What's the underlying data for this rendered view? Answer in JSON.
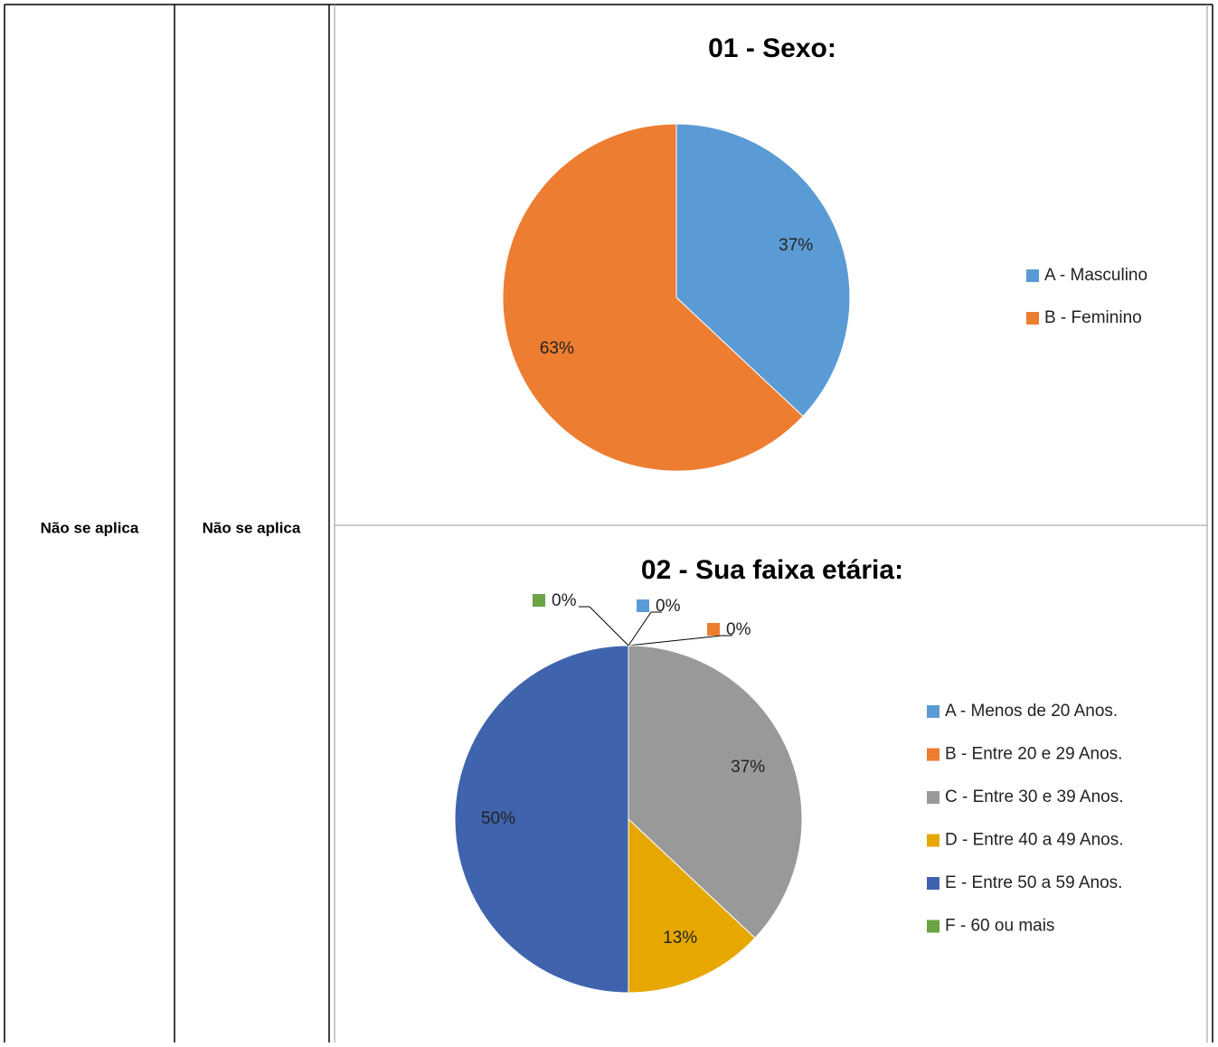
{
  "table": {
    "cells": [
      "Não se aplica",
      "Não se aplica"
    ]
  },
  "chart_data": [
    {
      "type": "pie",
      "title": "01 - Sexo:",
      "labels": [
        "A - Masculino",
        "B - Feminino"
      ],
      "values": [
        37,
        63
      ],
      "value_labels": [
        "37%",
        "63%"
      ],
      "colors": [
        "#5b9bd5",
        "#ed7d31"
      ]
    },
    {
      "type": "pie",
      "title": "02 - Sua faixa etária:",
      "labels": [
        "A - Menos de 20 Anos.",
        "B - Entre 20 e 29 Anos.",
        "C - Entre 30 e 39 Anos.",
        "D - Entre 40 a 49 Anos.",
        "E - Entre 50 a 59 Anos.",
        "F - 60 ou mais"
      ],
      "values": [
        0,
        0,
        37,
        13,
        50,
        0
      ],
      "value_labels": [
        "0%",
        "0%",
        "37%",
        "13%",
        "50%",
        "0%"
      ],
      "colors": [
        "#5b9bd5",
        "#ed7d31",
        "#999999",
        "#e6a800",
        "#3f64ad",
        "#6aa444"
      ]
    }
  ]
}
